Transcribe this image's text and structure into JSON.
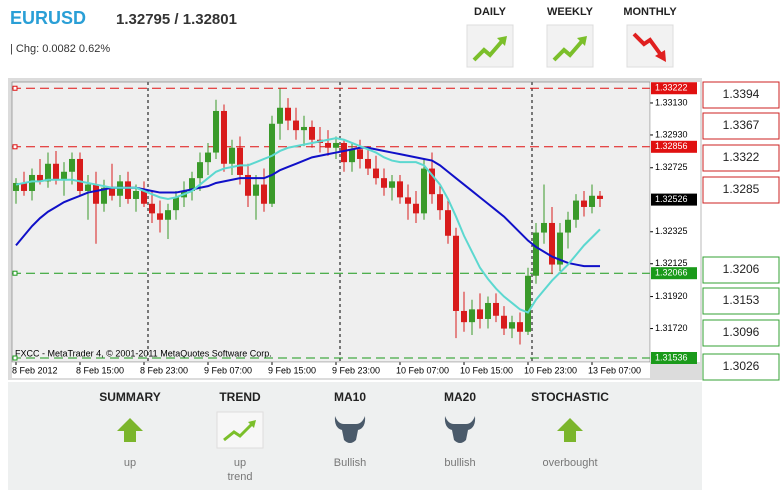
{
  "header": {
    "symbol": "EURUSD",
    "quote": "1.32795 / 1.32801",
    "change": "| Chg: 0.0082 0.62%"
  },
  "periods": [
    "DAILY",
    "WEEKLY",
    "MONTHLY"
  ],
  "resistance": [
    1.3394,
    1.3367,
    1.3322,
    1.3285
  ],
  "support": [
    1.3206,
    1.3153,
    1.3096,
    1.3026
  ],
  "summary": [
    {
      "title": "SUMMARY",
      "signal": [
        "up"
      ]
    },
    {
      "title": "TREND",
      "signal": [
        "up",
        "trend"
      ]
    },
    {
      "title": "MA10",
      "signal": [
        "Bullish"
      ]
    },
    {
      "title": "MA20",
      "signal": [
        "bullish"
      ]
    },
    {
      "title": "STOCHASTIC",
      "signal": [
        "overbought"
      ]
    }
  ],
  "chart_data": {
    "type": "candlestick",
    "watermark": "FXCC - MetaTrader 4, © 2001-2011 MetaQuotes Software Corp.",
    "categories": [
      "8 Feb 2012",
      null,
      null,
      null,
      null,
      null,
      null,
      null,
      "8 Feb 15:00",
      null,
      null,
      null,
      null,
      null,
      null,
      null,
      "8 Feb 23:00",
      null,
      null,
      null,
      null,
      null,
      null,
      null,
      "9 Feb 07:00",
      null,
      null,
      null,
      null,
      null,
      null,
      null,
      "9 Feb 15:00",
      null,
      null,
      null,
      null,
      null,
      null,
      null,
      "9 Feb 23:00",
      null,
      null,
      null,
      null,
      null,
      null,
      null,
      "10 Feb 07:00",
      null,
      null,
      null,
      null,
      null,
      null,
      null,
      "10 Feb 15:00",
      null,
      null,
      null,
      null,
      null,
      null,
      null,
      "10 Feb 23:00",
      null,
      null,
      null,
      null,
      null,
      null,
      null,
      "13 Feb 07:00",
      null
    ],
    "open": [
      1.3258,
      1.3263,
      1.3258,
      1.3268,
      1.3264,
      1.3275,
      1.3265,
      1.327,
      1.3278,
      1.3258,
      1.3262,
      1.325,
      1.326,
      1.3255,
      1.3264,
      1.3253,
      1.3258,
      1.325,
      1.3244,
      1.324,
      1.3246,
      1.3254,
      1.3258,
      1.3266,
      1.3276,
      1.3282,
      1.3308,
      1.3275,
      1.3285,
      1.3268,
      1.3255,
      1.3262,
      1.325,
      1.33,
      1.331,
      1.3302,
      1.3296,
      1.3298,
      1.329,
      1.3288,
      1.3285,
      1.3288,
      1.3276,
      1.3284,
      1.3278,
      1.3272,
      1.3266,
      1.326,
      1.3264,
      1.3254,
      1.325,
      1.3244,
      1.3272,
      1.3256,
      1.3246,
      1.323,
      1.3183,
      1.3176,
      1.3184,
      1.3178,
      1.3188,
      1.318,
      1.3172,
      1.3176,
      1.317,
      1.3205,
      1.3232,
      1.3238,
      1.3212,
      1.3232,
      1.324,
      1.3252,
      1.3248,
      1.3255
    ],
    "high": [
      1.3266,
      1.327,
      1.3272,
      1.3278,
      1.3282,
      1.3283,
      1.3276,
      1.3282,
      1.3282,
      1.3268,
      1.327,
      1.3265,
      1.3275,
      1.3268,
      1.327,
      1.3262,
      1.3264,
      1.3258,
      1.3252,
      1.325,
      1.3258,
      1.3264,
      1.327,
      1.3282,
      1.3288,
      1.3315,
      1.3312,
      1.329,
      1.3292,
      1.3275,
      1.3268,
      1.3272,
      1.3305,
      1.3322,
      1.3316,
      1.331,
      1.3305,
      1.3302,
      1.3298,
      1.3296,
      1.3292,
      1.329,
      1.3288,
      1.329,
      1.3286,
      1.328,
      1.3272,
      1.3268,
      1.3268,
      1.3262,
      1.3258,
      1.3278,
      1.3282,
      1.3262,
      1.3252,
      1.3235,
      1.3195,
      1.319,
      1.3194,
      1.3192,
      1.3194,
      1.3186,
      1.318,
      1.3182,
      1.321,
      1.3238,
      1.3262,
      1.3248,
      1.3238,
      1.3245,
      1.3256,
      1.3258,
      1.3262,
      1.3258
    ],
    "low": [
      1.325,
      1.3255,
      1.3252,
      1.3262,
      1.326,
      1.3262,
      1.3255,
      1.3262,
      1.3255,
      1.324,
      1.3225,
      1.3245,
      1.3252,
      1.3248,
      1.325,
      1.3245,
      1.3248,
      1.3238,
      1.3232,
      1.3228,
      1.324,
      1.3248,
      1.3252,
      1.3258,
      1.3268,
      1.3278,
      1.327,
      1.3268,
      1.3262,
      1.3248,
      1.324,
      1.3245,
      1.3248,
      1.329,
      1.3296,
      1.329,
      1.3286,
      1.3285,
      1.3282,
      1.328,
      1.3278,
      1.327,
      1.327,
      1.3272,
      1.3268,
      1.3262,
      1.3255,
      1.3252,
      1.325,
      1.324,
      1.3238,
      1.324,
      1.325,
      1.324,
      1.3225,
      1.3166,
      1.317,
      1.3168,
      1.3172,
      1.3172,
      1.3176,
      1.3168,
      1.3166,
      1.3162,
      1.3168,
      1.32,
      1.3225,
      1.3206,
      1.3208,
      1.3222,
      1.3235,
      1.3242,
      1.3244,
      1.3248
    ],
    "close": [
      1.3263,
      1.3258,
      1.3268,
      1.3264,
      1.3275,
      1.3265,
      1.327,
      1.3278,
      1.3258,
      1.3262,
      1.325,
      1.326,
      1.3255,
      1.3264,
      1.3253,
      1.3258,
      1.325,
      1.3244,
      1.324,
      1.3246,
      1.3254,
      1.3258,
      1.3266,
      1.3276,
      1.3282,
      1.3308,
      1.3275,
      1.3285,
      1.3268,
      1.3255,
      1.3262,
      1.325,
      1.33,
      1.331,
      1.3302,
      1.3296,
      1.3298,
      1.329,
      1.3288,
      1.3285,
      1.3288,
      1.3276,
      1.3284,
      1.3278,
      1.3272,
      1.3266,
      1.326,
      1.3264,
      1.3254,
      1.325,
      1.3244,
      1.3272,
      1.3256,
      1.3246,
      1.323,
      1.3183,
      1.3176,
      1.3184,
      1.3178,
      1.3188,
      1.318,
      1.3172,
      1.3176,
      1.317,
      1.3205,
      1.3232,
      1.3238,
      1.3212,
      1.3232,
      1.324,
      1.3252,
      1.3248,
      1.3255,
      1.3253
    ],
    "up_color": "#3a9a2a",
    "down_color": "#d81c1c",
    "overlays": [
      {
        "color": "#1010c8",
        "values": [
          1.3224,
          1.323,
          1.3236,
          1.3241,
          1.3245,
          1.3248,
          1.3251,
          1.3253,
          1.3255,
          1.3257,
          1.3258,
          1.3259,
          1.326,
          1.326,
          1.326,
          1.326,
          1.3259,
          1.3258,
          1.3257,
          1.3257,
          1.3257,
          1.3258,
          1.3259,
          1.326,
          1.3261,
          1.3263,
          1.3264,
          1.3265,
          1.3266,
          1.3266,
          1.3266,
          1.3266,
          1.3268,
          1.3271,
          1.3273,
          1.3275,
          1.3277,
          1.3279,
          1.328,
          1.3281,
          1.3282,
          1.3283,
          1.3284,
          1.3285,
          1.3285,
          1.3284,
          1.3283,
          1.3282,
          1.3281,
          1.328,
          1.3279,
          1.3278,
          1.3277,
          1.3274,
          1.327,
          1.3266,
          1.3262,
          1.3258,
          1.3254,
          1.325,
          1.3246,
          1.3242,
          1.3237,
          1.3232,
          1.3227,
          1.3223,
          1.322,
          1.3217,
          1.3215,
          1.3213,
          1.3212,
          1.3211,
          1.3211,
          1.3211
        ]
      },
      {
        "color": "#5cd8d0",
        "values": [
          1.3262,
          1.3263,
          1.3264,
          1.3264,
          1.3265,
          1.3265,
          1.3265,
          1.3265,
          1.3264,
          1.3263,
          1.3262,
          1.3261,
          1.326,
          1.326,
          1.326,
          1.326,
          1.3258,
          1.3256,
          1.3254,
          1.3253,
          1.3254,
          1.3256,
          1.3258,
          1.3262,
          1.3266,
          1.327,
          1.3272,
          1.3273,
          1.3274,
          1.3274,
          1.3276,
          1.3278,
          1.328,
          1.3283,
          1.3285,
          1.3286,
          1.3287,
          1.3288,
          1.3289,
          1.329,
          1.3291,
          1.329,
          1.3288,
          1.3286,
          1.3284,
          1.3282,
          1.3279,
          1.3277,
          1.3276,
          1.3276,
          1.3276,
          1.3274,
          1.3268,
          1.3262,
          1.3253,
          1.3242,
          1.323,
          1.322,
          1.321,
          1.3203,
          1.3197,
          1.3192,
          1.3188,
          1.3184,
          1.3182,
          1.319,
          1.3196,
          1.3202,
          1.3207,
          1.3212,
          1.3218,
          1.3224,
          1.3229,
          1.3234
        ]
      }
    ],
    "ylim": [
      1.31511,
      1.33261
    ],
    "yticks": [
      {
        "value": 1.3313,
        "label": "1.33130"
      },
      {
        "value": 1.3293,
        "label": "1.32930"
      },
      1.32725,
      1.32325,
      1.32125,
      {
        "value": 1.3192,
        "label": "1.31920"
      },
      {
        "value": 1.3172,
        "label": "1.31720"
      }
    ],
    "levels": [
      {
        "value": 1.33222,
        "color": "#e01010",
        "line": true
      },
      {
        "value": 1.32856,
        "color": "#e01010",
        "line": true
      },
      {
        "value": 1.32526,
        "color": "#000000",
        "line": false
      },
      {
        "value": 1.32066,
        "color": "#1a9a1a",
        "line": true
      },
      {
        "value": 1.31536,
        "color": "#1a9a1a",
        "line": true
      }
    ]
  }
}
